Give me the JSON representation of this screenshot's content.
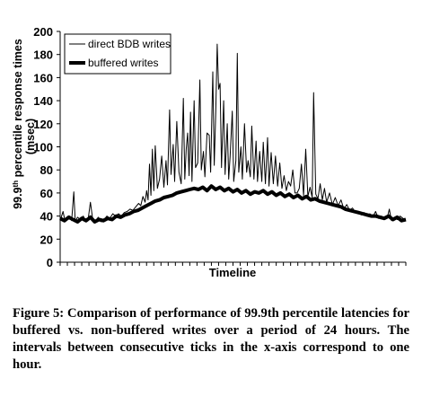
{
  "chart_data": {
    "type": "line",
    "title": "",
    "xlabel": "Timeline",
    "ylabel_main": "99.9",
    "ylabel_sup": "th",
    "ylabel_rest": " percentile response times",
    "ylabel_unit": "(msec)",
    "ylim": [
      0,
      200
    ],
    "yticks": [
      0,
      20,
      40,
      60,
      80,
      100,
      120,
      140,
      160,
      180,
      200
    ],
    "x_range": [
      0,
      24
    ],
    "x_tick_count": 48,
    "grid": false,
    "legend_position": "top-left",
    "series": [
      {
        "name": "direct BDB writes",
        "color": "#000000",
        "points": [
          [
            0.0,
            36
          ],
          [
            0.2,
            44
          ],
          [
            0.35,
            35
          ],
          [
            0.5,
            38
          ],
          [
            0.65,
            40
          ],
          [
            0.8,
            36
          ],
          [
            0.95,
            61
          ],
          [
            1.05,
            35
          ],
          [
            1.2,
            39
          ],
          [
            1.4,
            37
          ],
          [
            1.6,
            40
          ],
          [
            1.8,
            35
          ],
          [
            1.95,
            38
          ],
          [
            2.1,
            52
          ],
          [
            2.25,
            38
          ],
          [
            2.45,
            36
          ],
          [
            2.65,
            39
          ],
          [
            2.85,
            35
          ],
          [
            3.05,
            37
          ],
          [
            3.25,
            40
          ],
          [
            3.45,
            38
          ],
          [
            3.65,
            42
          ],
          [
            3.85,
            40
          ],
          [
            4.05,
            42
          ],
          [
            4.25,
            40
          ],
          [
            4.45,
            43
          ],
          [
            4.65,
            44
          ],
          [
            4.85,
            46
          ],
          [
            5.05,
            45
          ],
          [
            5.25,
            48
          ],
          [
            5.45,
            51
          ],
          [
            5.6,
            49
          ],
          [
            5.75,
            57
          ],
          [
            5.9,
            52
          ],
          [
            6.0,
            62
          ],
          [
            6.1,
            54
          ],
          [
            6.2,
            85
          ],
          [
            6.3,
            58
          ],
          [
            6.4,
            98
          ],
          [
            6.5,
            62
          ],
          [
            6.6,
            101
          ],
          [
            6.75,
            64
          ],
          [
            6.9,
            72
          ],
          [
            7.05,
            92
          ],
          [
            7.2,
            65
          ],
          [
            7.35,
            88
          ],
          [
            7.45,
            67
          ],
          [
            7.6,
            132
          ],
          [
            7.7,
            76
          ],
          [
            7.85,
            102
          ],
          [
            7.95,
            70
          ],
          [
            8.1,
            122
          ],
          [
            8.25,
            78
          ],
          [
            8.4,
            68
          ],
          [
            8.55,
            142
          ],
          [
            8.65,
            72
          ],
          [
            8.75,
            98
          ],
          [
            8.85,
            112
          ],
          [
            8.95,
            75
          ],
          [
            9.05,
            130
          ],
          [
            9.15,
            70
          ],
          [
            9.3,
            140
          ],
          [
            9.4,
            82
          ],
          [
            9.55,
            86
          ],
          [
            9.7,
            158
          ],
          [
            9.8,
            80
          ],
          [
            9.95,
            96
          ],
          [
            10.05,
            74
          ],
          [
            10.2,
            112
          ],
          [
            10.35,
            110
          ],
          [
            10.45,
            78
          ],
          [
            10.6,
            165
          ],
          [
            10.7,
            84
          ],
          [
            10.8,
            130
          ],
          [
            10.9,
            189
          ],
          [
            11.0,
            150
          ],
          [
            11.1,
            155
          ],
          [
            11.2,
            82
          ],
          [
            11.35,
            140
          ],
          [
            11.45,
            76
          ],
          [
            11.6,
            120
          ],
          [
            11.7,
            72
          ],
          [
            11.8,
            92
          ],
          [
            11.95,
            131
          ],
          [
            12.05,
            70
          ],
          [
            12.2,
            88
          ],
          [
            12.3,
            181
          ],
          [
            12.4,
            78
          ],
          [
            12.55,
            100
          ],
          [
            12.65,
            72
          ],
          [
            12.8,
            120
          ],
          [
            12.95,
            78
          ],
          [
            13.05,
            88
          ],
          [
            13.2,
            74
          ],
          [
            13.3,
            118
          ],
          [
            13.45,
            72
          ],
          [
            13.6,
            105
          ],
          [
            13.7,
            70
          ],
          [
            13.85,
            96
          ],
          [
            14.0,
            70
          ],
          [
            14.1,
            104
          ],
          [
            14.25,
            68
          ],
          [
            14.4,
            108
          ],
          [
            14.5,
            66
          ],
          [
            14.65,
            95
          ],
          [
            14.8,
            68
          ],
          [
            14.95,
            92
          ],
          [
            15.1,
            66
          ],
          [
            15.25,
            86
          ],
          [
            15.4,
            64
          ],
          [
            15.55,
            75
          ],
          [
            15.7,
            62
          ],
          [
            15.85,
            70
          ],
          [
            16.0,
            66
          ],
          [
            16.15,
            80
          ],
          [
            16.3,
            60
          ],
          [
            16.45,
            60
          ],
          [
            16.6,
            64
          ],
          [
            16.75,
            85
          ],
          [
            16.9,
            58
          ],
          [
            17.05,
            98
          ],
          [
            17.2,
            57
          ],
          [
            17.35,
            65
          ],
          [
            17.5,
            56
          ],
          [
            17.6,
            147
          ],
          [
            17.75,
            59
          ],
          [
            17.9,
            55
          ],
          [
            18.05,
            68
          ],
          [
            18.2,
            54
          ],
          [
            18.35,
            64
          ],
          [
            18.5,
            52
          ],
          [
            18.7,
            60
          ],
          [
            18.9,
            50
          ],
          [
            19.1,
            56
          ],
          [
            19.3,
            49
          ],
          [
            19.5,
            54
          ],
          [
            19.7,
            46
          ],
          [
            19.9,
            50
          ],
          [
            20.1,
            45
          ],
          [
            20.3,
            47
          ],
          [
            20.5,
            43
          ],
          [
            20.7,
            44
          ],
          [
            20.9,
            41
          ],
          [
            21.1,
            43
          ],
          [
            21.3,
            40
          ],
          [
            21.5,
            42
          ],
          [
            21.7,
            39
          ],
          [
            21.9,
            44
          ],
          [
            22.1,
            38
          ],
          [
            22.3,
            40
          ],
          [
            22.5,
            37
          ],
          [
            22.7,
            38
          ],
          [
            22.85,
            46
          ],
          [
            23.0,
            36
          ],
          [
            23.2,
            39
          ],
          [
            23.4,
            37
          ],
          [
            23.6,
            40
          ],
          [
            23.8,
            38
          ],
          [
            24.0,
            37
          ]
        ]
      },
      {
        "name": "buffered writes",
        "color": "#000000",
        "points": [
          [
            0.0,
            38
          ],
          [
            0.3,
            36
          ],
          [
            0.6,
            39
          ],
          [
            0.9,
            37
          ],
          [
            1.2,
            35
          ],
          [
            1.5,
            38
          ],
          [
            1.8,
            36
          ],
          [
            2.1,
            39
          ],
          [
            2.4,
            35
          ],
          [
            2.7,
            37
          ],
          [
            3.0,
            36
          ],
          [
            3.3,
            38
          ],
          [
            3.6,
            37
          ],
          [
            3.9,
            40
          ],
          [
            4.2,
            39
          ],
          [
            4.5,
            41
          ],
          [
            4.8,
            42
          ],
          [
            5.1,
            44
          ],
          [
            5.4,
            45
          ],
          [
            5.7,
            47
          ],
          [
            6.0,
            49
          ],
          [
            6.3,
            51
          ],
          [
            6.6,
            53
          ],
          [
            6.9,
            54
          ],
          [
            7.2,
            56
          ],
          [
            7.5,
            57
          ],
          [
            7.8,
            58
          ],
          [
            8.1,
            60
          ],
          [
            8.4,
            61
          ],
          [
            8.7,
            62
          ],
          [
            9.0,
            63
          ],
          [
            9.3,
            64
          ],
          [
            9.6,
            63
          ],
          [
            9.9,
            65
          ],
          [
            10.2,
            62
          ],
          [
            10.5,
            66
          ],
          [
            10.8,
            63
          ],
          [
            11.1,
            65
          ],
          [
            11.4,
            62
          ],
          [
            11.7,
            64
          ],
          [
            12.0,
            61
          ],
          [
            12.3,
            63
          ],
          [
            12.6,
            60
          ],
          [
            12.9,
            62
          ],
          [
            13.2,
            59
          ],
          [
            13.5,
            61
          ],
          [
            13.8,
            60
          ],
          [
            14.1,
            62
          ],
          [
            14.4,
            59
          ],
          [
            14.7,
            61
          ],
          [
            15.0,
            58
          ],
          [
            15.3,
            60
          ],
          [
            15.6,
            57
          ],
          [
            15.9,
            59
          ],
          [
            16.2,
            56
          ],
          [
            16.5,
            58
          ],
          [
            16.8,
            55
          ],
          [
            17.1,
            57
          ],
          [
            17.4,
            54
          ],
          [
            17.7,
            55
          ],
          [
            18.0,
            53
          ],
          [
            18.3,
            52
          ],
          [
            18.6,
            51
          ],
          [
            18.9,
            50
          ],
          [
            19.2,
            49
          ],
          [
            19.5,
            48
          ],
          [
            19.8,
            46
          ],
          [
            20.1,
            45
          ],
          [
            20.4,
            44
          ],
          [
            20.7,
            43
          ],
          [
            21.0,
            42
          ],
          [
            21.3,
            41
          ],
          [
            21.6,
            40
          ],
          [
            21.9,
            40
          ],
          [
            22.2,
            39
          ],
          [
            22.5,
            38
          ],
          [
            22.8,
            40
          ],
          [
            23.1,
            37
          ],
          [
            23.4,
            39
          ],
          [
            23.7,
            36
          ],
          [
            24.0,
            37
          ]
        ]
      }
    ]
  },
  "caption": "Figure 5: Comparison of performance of 99.9th percentile latencies for buffered vs. non-buffered writes over a period of 24 hours. The intervals between consecutive ticks in the x-axis correspond to one hour."
}
